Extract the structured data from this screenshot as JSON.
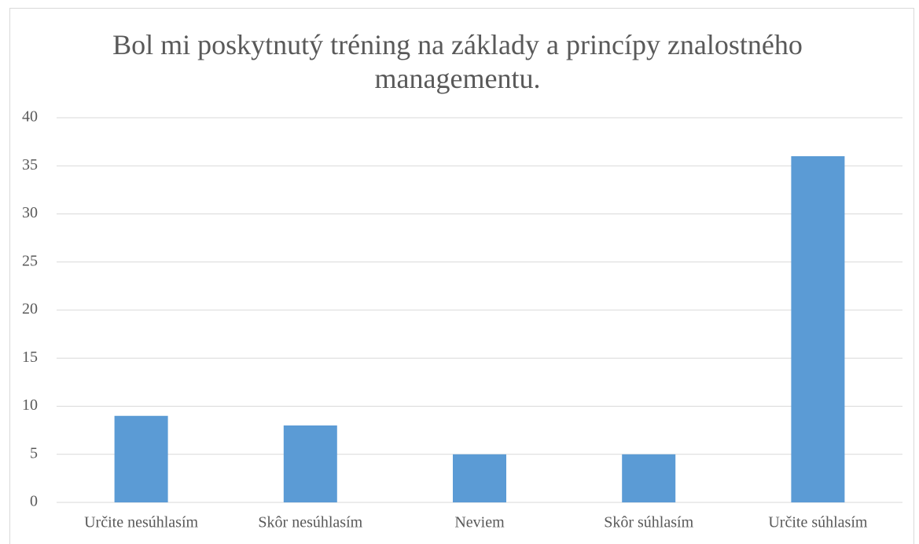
{
  "chart_data": {
    "type": "bar",
    "title": "Bol mi poskytnutý tréning na základy a princípy znalostného managementu.",
    "categories": [
      "Určite nesúhlasím",
      "Skôr nesúhlasím",
      "Neviem",
      "Skôr súhlasím",
      "Určite súhlasím"
    ],
    "values": [
      9,
      8,
      5,
      5,
      36
    ],
    "color": "#5b9bd5",
    "ylim": [
      0,
      40
    ],
    "yticks": [
      0,
      5,
      10,
      15,
      20,
      25,
      30,
      35,
      40
    ],
    "grid": true
  }
}
